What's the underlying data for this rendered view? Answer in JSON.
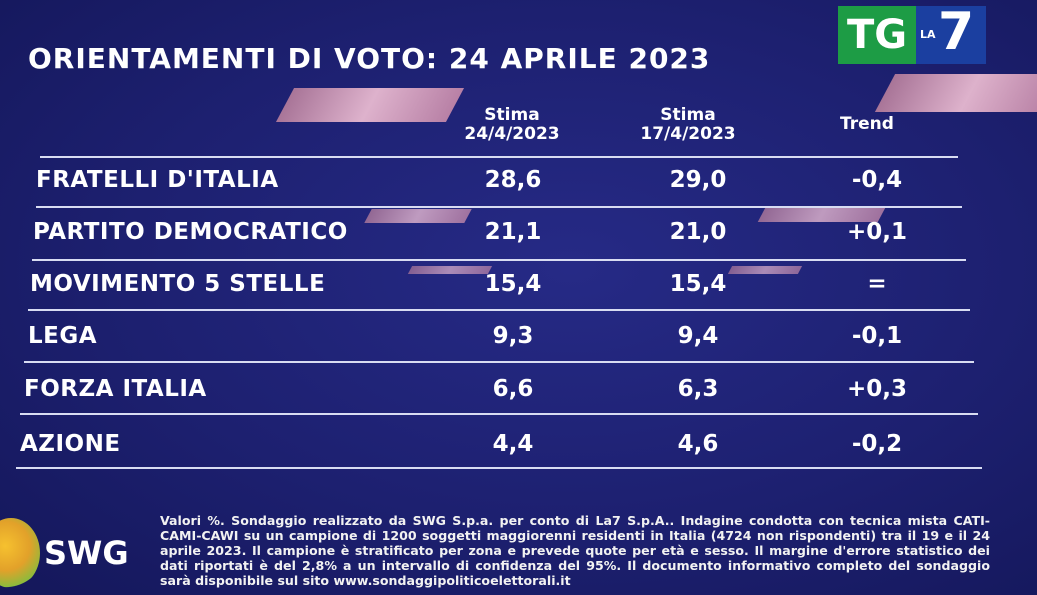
{
  "title": "ORIENTAMENTI DI VOTO: 24 APRILE 2023",
  "logo": {
    "tg": "TG",
    "la": "LA",
    "seven": "7"
  },
  "columns": {
    "current": {
      "line1": "Stima",
      "line2": "24/4/2023"
    },
    "previous": {
      "line1": "Stima",
      "line2": "17/4/2023"
    },
    "trend": "Trend"
  },
  "chart_data": {
    "type": "table",
    "title": "ORIENTAMENTI DI VOTO: 24 APRILE 2023",
    "columns": [
      "Stima 24/4/2023",
      "Stima 17/4/2023",
      "Trend"
    ],
    "rows": [
      {
        "party": "FRATELLI D'ITALIA",
        "current": "28,6",
        "previous": "29,0",
        "trend": "-0,4"
      },
      {
        "party": "PARTITO DEMOCRATICO",
        "current": "21,1",
        "previous": "21,0",
        "trend": "+0,1"
      },
      {
        "party": "MOVIMENTO 5 STELLE",
        "current": "15,4",
        "previous": "15,4",
        "trend": "="
      },
      {
        "party": "LEGA",
        "current": "9,3",
        "previous": "9,4",
        "trend": "-0,1"
      },
      {
        "party": "FORZA ITALIA",
        "current": "6,6",
        "previous": "6,3",
        "trend": "+0,3"
      },
      {
        "party": "AZIONE",
        "current": "4,4",
        "previous": "4,6",
        "trend": "-0,2"
      }
    ]
  },
  "footer": {
    "swg_label": "SWG",
    "note": "Valori %. Sondaggio realizzato da SWG S.p.a. per conto di La7 S.p.A.. Indagine condotta con tecnica mista CATI-CAMI-CAWI su un campione di 1200 soggetti maggiorenni residenti in Italia (4724 non rispondenti) tra il 19 e il 24 aprile 2023. Il campione è stratificato per zona e prevede quote per età e sesso. Il margine d'errore statistico dei dati riportati è del 2,8% a un intervallo di confidenza del 95%. Il documento informativo completo del sondaggio sarà disponibile sul sito www.sondaggipoliticoelettorali.it"
  }
}
